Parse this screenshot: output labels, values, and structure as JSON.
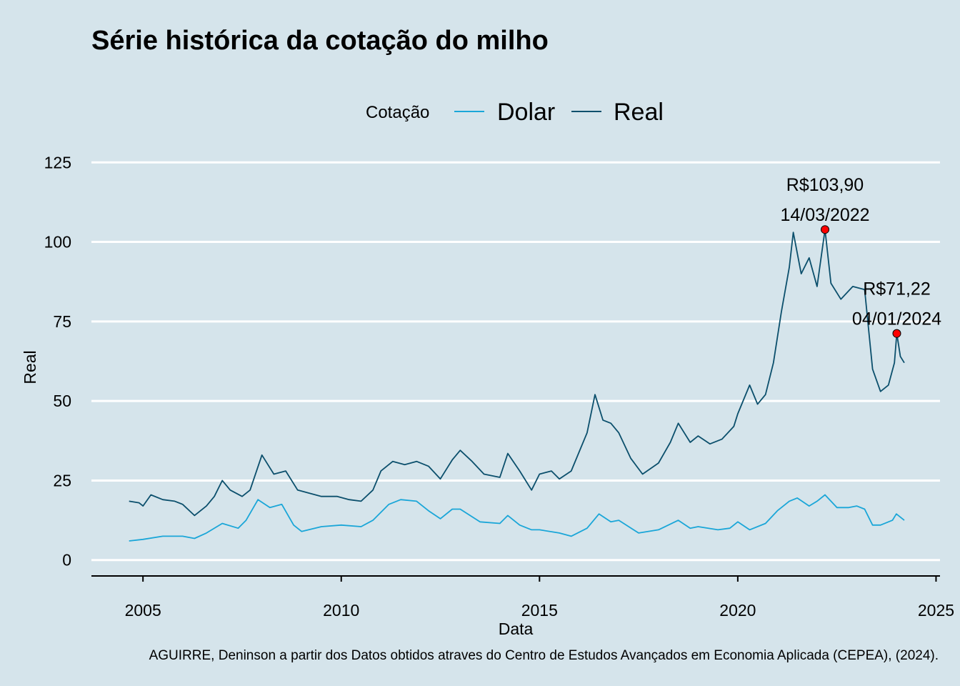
{
  "chart_data": {
    "type": "line",
    "title": "Série histórica da cotação do milho",
    "xlabel": "Data",
    "ylabel": "Real",
    "caption": "AGUIRRE, Deninson a partir dos Datos obtidos atraves do Centro de Estudos Avançados em Economia Aplicada (CEPEA), (2024).",
    "legend_title": "Cotação",
    "legend_position": "top",
    "grid": "horizontal major",
    "xlim": [
      2003.7,
      2025.1
    ],
    "ylim": [
      -5,
      130
    ],
    "x_ticks": [
      2005,
      2010,
      2015,
      2020,
      2025
    ],
    "x_tick_labels": [
      "2005",
      "2010",
      "2015",
      "2020",
      "2025"
    ],
    "y_ticks": [
      0,
      25,
      50,
      75,
      100,
      125
    ],
    "y_tick_labels": [
      "0",
      "25",
      "50",
      "75",
      "100",
      "125"
    ],
    "series": [
      {
        "name": "Dolar",
        "color": "#1aa6d8",
        "points": [
          [
            2004.65,
            6.0
          ],
          [
            2005.0,
            6.5
          ],
          [
            2005.5,
            7.5
          ],
          [
            2006.0,
            7.5
          ],
          [
            2006.3,
            6.8
          ],
          [
            2006.6,
            8.5
          ],
          [
            2007.0,
            11.5
          ],
          [
            2007.4,
            10.0
          ],
          [
            2007.6,
            12.5
          ],
          [
            2007.9,
            19.0
          ],
          [
            2008.2,
            16.5
          ],
          [
            2008.5,
            17.5
          ],
          [
            2008.8,
            11.0
          ],
          [
            2009.0,
            9.0
          ],
          [
            2009.5,
            10.5
          ],
          [
            2010.0,
            11.0
          ],
          [
            2010.5,
            10.5
          ],
          [
            2010.8,
            12.5
          ],
          [
            2011.2,
            17.5
          ],
          [
            2011.5,
            19.0
          ],
          [
            2011.9,
            18.5
          ],
          [
            2012.2,
            15.5
          ],
          [
            2012.5,
            13.0
          ],
          [
            2012.8,
            16.0
          ],
          [
            2013.0,
            16.0
          ],
          [
            2013.5,
            12.0
          ],
          [
            2014.0,
            11.5
          ],
          [
            2014.2,
            14.0
          ],
          [
            2014.5,
            11.0
          ],
          [
            2014.8,
            9.5
          ],
          [
            2015.0,
            9.5
          ],
          [
            2015.5,
            8.5
          ],
          [
            2015.8,
            7.5
          ],
          [
            2016.2,
            10.0
          ],
          [
            2016.5,
            14.5
          ],
          [
            2016.8,
            12.0
          ],
          [
            2017.0,
            12.5
          ],
          [
            2017.5,
            8.5
          ],
          [
            2018.0,
            9.5
          ],
          [
            2018.5,
            12.5
          ],
          [
            2018.8,
            10.0
          ],
          [
            2019.0,
            10.5
          ],
          [
            2019.5,
            9.5
          ],
          [
            2019.8,
            10.0
          ],
          [
            2020.0,
            12.0
          ],
          [
            2020.3,
            9.5
          ],
          [
            2020.7,
            11.5
          ],
          [
            2021.0,
            15.5
          ],
          [
            2021.3,
            18.5
          ],
          [
            2021.5,
            19.5
          ],
          [
            2021.8,
            17.0
          ],
          [
            2022.0,
            18.5
          ],
          [
            2022.2,
            20.5
          ],
          [
            2022.5,
            16.5
          ],
          [
            2022.8,
            16.5
          ],
          [
            2023.0,
            17.0
          ],
          [
            2023.2,
            16.0
          ],
          [
            2023.4,
            11.0
          ],
          [
            2023.6,
            11.0
          ],
          [
            2023.9,
            12.5
          ],
          [
            2024.0,
            14.5
          ],
          [
            2024.2,
            12.5
          ]
        ]
      },
      {
        "name": "Real",
        "color": "#0b4f6c",
        "points": [
          [
            2004.65,
            18.5
          ],
          [
            2004.9,
            18.0
          ],
          [
            2005.0,
            17.0
          ],
          [
            2005.2,
            20.5
          ],
          [
            2005.5,
            19.0
          ],
          [
            2005.8,
            18.5
          ],
          [
            2006.0,
            17.5
          ],
          [
            2006.3,
            14.0
          ],
          [
            2006.6,
            17.0
          ],
          [
            2006.8,
            20.0
          ],
          [
            2007.0,
            25.0
          ],
          [
            2007.2,
            22.0
          ],
          [
            2007.5,
            20.0
          ],
          [
            2007.7,
            22.0
          ],
          [
            2008.0,
            33.0
          ],
          [
            2008.3,
            27.0
          ],
          [
            2008.6,
            28.0
          ],
          [
            2008.9,
            22.0
          ],
          [
            2009.2,
            21.0
          ],
          [
            2009.5,
            20.0
          ],
          [
            2009.9,
            20.0
          ],
          [
            2010.2,
            19.0
          ],
          [
            2010.5,
            18.5
          ],
          [
            2010.8,
            22.0
          ],
          [
            2011.0,
            28.0
          ],
          [
            2011.3,
            31.0
          ],
          [
            2011.6,
            30.0
          ],
          [
            2011.9,
            31.0
          ],
          [
            2012.2,
            29.5
          ],
          [
            2012.5,
            25.5
          ],
          [
            2012.8,
            31.5
          ],
          [
            2013.0,
            34.5
          ],
          [
            2013.3,
            31.0
          ],
          [
            2013.6,
            27.0
          ],
          [
            2014.0,
            26.0
          ],
          [
            2014.2,
            33.5
          ],
          [
            2014.5,
            28.0
          ],
          [
            2014.8,
            22.0
          ],
          [
            2015.0,
            27.0
          ],
          [
            2015.3,
            28.0
          ],
          [
            2015.5,
            25.5
          ],
          [
            2015.8,
            28.0
          ],
          [
            2016.0,
            34.0
          ],
          [
            2016.2,
            40.0
          ],
          [
            2016.4,
            52.0
          ],
          [
            2016.6,
            44.0
          ],
          [
            2016.8,
            43.0
          ],
          [
            2017.0,
            40.0
          ],
          [
            2017.3,
            32.0
          ],
          [
            2017.6,
            27.0
          ],
          [
            2018.0,
            30.5
          ],
          [
            2018.3,
            37.0
          ],
          [
            2018.5,
            43.0
          ],
          [
            2018.8,
            37.0
          ],
          [
            2019.0,
            39.0
          ],
          [
            2019.3,
            36.5
          ],
          [
            2019.6,
            38.0
          ],
          [
            2019.9,
            42.0
          ],
          [
            2020.0,
            46.0
          ],
          [
            2020.3,
            55.0
          ],
          [
            2020.5,
            49.0
          ],
          [
            2020.7,
            52.0
          ],
          [
            2020.9,
            62.0
          ],
          [
            2021.1,
            78.0
          ],
          [
            2021.3,
            92.0
          ],
          [
            2021.4,
            103.0
          ],
          [
            2021.6,
            90.0
          ],
          [
            2021.8,
            95.0
          ],
          [
            2022.0,
            86.0
          ],
          [
            2022.2,
            103.9
          ],
          [
            2022.35,
            87.0
          ],
          [
            2022.6,
            82.0
          ],
          [
            2022.9,
            86.0
          ],
          [
            2023.2,
            85.0
          ],
          [
            2023.4,
            60.0
          ],
          [
            2023.6,
            53.0
          ],
          [
            2023.8,
            55.0
          ],
          [
            2023.95,
            62.0
          ],
          [
            2024.01,
            71.22
          ],
          [
            2024.1,
            64.0
          ],
          [
            2024.2,
            62.0
          ]
        ]
      }
    ],
    "annotations": [
      {
        "value_label": "R$103,90",
        "date_label": "14/03/2022",
        "x": 2022.2,
        "y": 103.9,
        "color": "#ff0000"
      },
      {
        "value_label": "R$71,22",
        "date_label": "04/01/2024",
        "x": 2024.01,
        "y": 71.22,
        "color": "#ff0000"
      }
    ]
  }
}
